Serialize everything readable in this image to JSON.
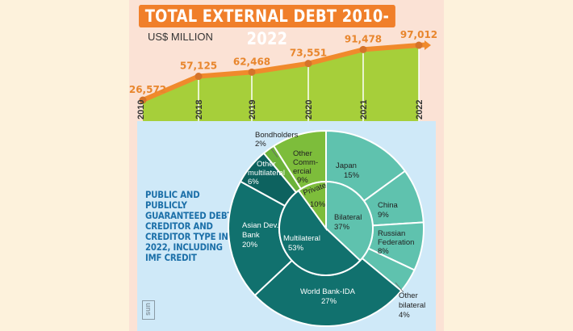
{
  "chart_data": [
    {
      "type": "area",
      "title": "TOTAL EXTERNAL DEBT 2010-2022",
      "ylabel": "US$ MILLION",
      "categories": [
        "2010",
        "2018",
        "2019",
        "2020",
        "2021",
        "2022"
      ],
      "values": [
        26572,
        57125,
        62468,
        73551,
        91478,
        97012
      ],
      "value_labels": [
        "26,572",
        "57,125",
        "62,468",
        "73,551",
        "91,478",
        "97,012"
      ],
      "colors": {
        "fill": "#a6cf3a",
        "line": "#f08a2c",
        "point": "#d5732a"
      }
    },
    {
      "type": "pie",
      "title": "PUBLIC AND PUBLICLY GUARANTEED DEBT, CREDITOR AND CREDITOR TYPE IN 2022, INCLUDING IMF CREDIT",
      "inner": [
        {
          "label": "Bilateral",
          "pct": 37,
          "text": "37%",
          "color": "#5fc2ae"
        },
        {
          "label": "Multilateral",
          "pct": 53,
          "text": "53%",
          "color": "#11716e"
        },
        {
          "label": "Private",
          "pct": 10,
          "text": "10%",
          "color": "#7dbd3b"
        }
      ],
      "outer": [
        {
          "label": "Japan",
          "pct": 15,
          "text": "15%",
          "color": "#5fc2ae"
        },
        {
          "label": "China",
          "pct": 9,
          "text": "9%",
          "color": "#5fc2ae"
        },
        {
          "label": "Russian Federation",
          "pct": 8,
          "text": "8%",
          "color": "#5fc2ae"
        },
        {
          "label": "Other bilateral",
          "pct": 4,
          "text": "4%",
          "color": "#5fc2ae"
        },
        {
          "label": "World Bank-IDA",
          "pct": 27,
          "text": "27%",
          "color": "#11716e"
        },
        {
          "label": "Asian Dev. Bank",
          "pct": 20,
          "text": "20%",
          "color": "#11716e"
        },
        {
          "label": "Other multilateral",
          "pct": 6,
          "text": "6%",
          "color": "#0d625f"
        },
        {
          "label": "Bondholders",
          "pct": 2,
          "text": "2%",
          "color": "#6cb33a"
        },
        {
          "label": "Other Commercial",
          "pct": 9,
          "text": "9%",
          "color": "#7dbd3b"
        }
      ]
    }
  ],
  "logo": "sun"
}
